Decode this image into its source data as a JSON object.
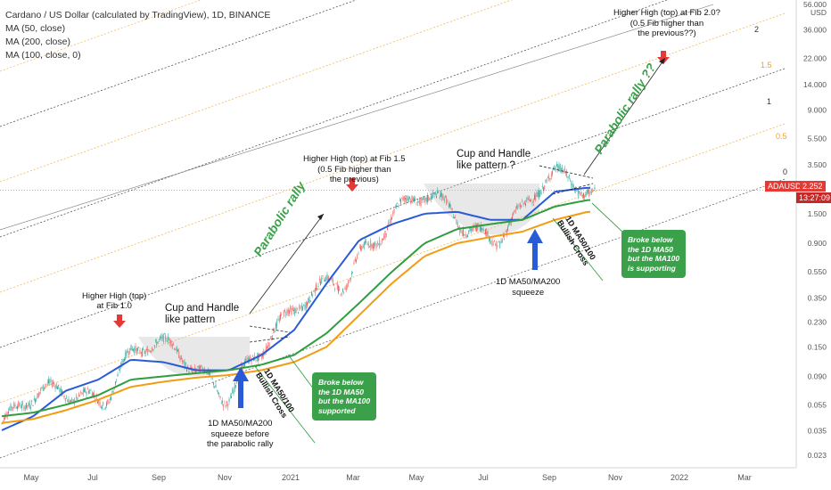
{
  "legend": {
    "title": "Cardano / US Dollar (calculated by TradingView), 1D, BINANCE",
    "ma50": "MA (50, close)",
    "ma200": "MA (200, close)",
    "ma100": "MA (100, close, 0)"
  },
  "price_tag": {
    "symbol": "ADAUSD",
    "price": "2.252",
    "countdown": "13:27:09"
  },
  "colors": {
    "ma50": "#2a5bd7",
    "ma100": "#f39c12",
    "ma200": "#2e9e3e",
    "candle_up": "#26a69a",
    "candle_down": "#ef5350",
    "callout": "#3aa14a",
    "arrow_red": "#e53935",
    "arrow_blue": "#2a5bd7",
    "fib_0": "#333333",
    "fib_05": "#f0b85a",
    "fib_1": "#333333",
    "fib_15": "#f0b85a",
    "fib_2": "#333333"
  },
  "annotations": {
    "hh1": "Higher High (top)\nat Fib 1.0",
    "cup1": "Cup and Handle\nlike pattern",
    "rally1": "Parabolic rally",
    "cross1": "1D MA50/100\nBullish Cross",
    "callout1": "Broke below\nthe 1D MA50\nbut the MA100\nsupported",
    "squeeze1": "1D MA50/MA200\nsqueeze before\nthe parabolic rally",
    "hh2": "Higher High (top) at Fib 1.5\n(0.5 Fib higher than\nthe previous)",
    "cup2": "Cup and Handle\nlike pattern ?",
    "cross2": "1D MA50/100\nBullish Cross",
    "callout2": "Broke below\nthe 1D MA50\nbut the MA100\nis supporting",
    "squeeze2": "1D MA50/MA200\nsqueeze",
    "rally2": "Parabolic rally ??",
    "hh3": "Higher High (top) at Fib 2.0?\n(0.5 Fib higher than\nthe previous??)"
  },
  "chart_data": {
    "type": "line",
    "title": "Cardano / US Dollar (calculated by TradingView), 1D, BINANCE",
    "y_scale": "log",
    "ylim": [
      0.02,
      56
    ],
    "y_ticks": [
      "56.000",
      "USD",
      "36.000",
      "22.000",
      "14.000",
      "9.000",
      "5.500",
      "3.500",
      "2.252",
      "1.500",
      "0.900",
      "0.550",
      "0.350",
      "0.230",
      "0.150",
      "0.090",
      "0.055",
      "0.035",
      "0.023"
    ],
    "x_ticks": [
      "May",
      "Jul",
      "Sep",
      "Nov",
      "2021",
      "Mar",
      "May",
      "Jul",
      "Sep",
      "Nov",
      "2022",
      "Mar"
    ],
    "fib_labels": [
      "0",
      "0.5",
      "1",
      "1.5",
      "2"
    ],
    "current_price": 2.252,
    "series": [
      {
        "name": "MA (50, close)",
        "x": [
          "2020-04",
          "2020-05",
          "2020-06",
          "2020-07",
          "2020-08",
          "2020-09",
          "2020-10",
          "2020-11",
          "2020-12",
          "2021-01",
          "2021-02",
          "2021-03",
          "2021-04",
          "2021-05",
          "2021-06",
          "2021-07",
          "2021-08",
          "2021-09",
          "2021-10"
        ],
        "values": [
          0.035,
          0.045,
          0.07,
          0.085,
          0.12,
          0.115,
          0.1,
          0.1,
          0.13,
          0.2,
          0.45,
          0.95,
          1.25,
          1.5,
          1.55,
          1.35,
          1.35,
          2.2,
          2.35
        ]
      },
      {
        "name": "MA (200, close)",
        "x": [
          "2020-04",
          "2020-05",
          "2020-06",
          "2020-07",
          "2020-08",
          "2020-09",
          "2020-10",
          "2020-11",
          "2020-12",
          "2021-01",
          "2021-02",
          "2021-03",
          "2021-04",
          "2021-05",
          "2021-06",
          "2021-07",
          "2021-08",
          "2021-09",
          "2021-10"
        ],
        "values": [
          0.045,
          0.048,
          0.055,
          0.065,
          0.085,
          0.09,
          0.095,
          0.1,
          0.11,
          0.13,
          0.19,
          0.32,
          0.55,
          0.9,
          1.15,
          1.25,
          1.35,
          1.7,
          1.9
        ]
      },
      {
        "name": "MA (100, close, 0)",
        "x": [
          "2020-04",
          "2020-05",
          "2020-06",
          "2020-07",
          "2020-08",
          "2020-09",
          "2020-10",
          "2020-11",
          "2020-12",
          "2021-01",
          "2021-02",
          "2021-03",
          "2021-04",
          "2021-05",
          "2021-06",
          "2021-07",
          "2021-08",
          "2021-09",
          "2021-10"
        ],
        "values": [
          0.04,
          0.043,
          0.05,
          0.06,
          0.075,
          0.082,
          0.088,
          0.092,
          0.1,
          0.115,
          0.15,
          0.26,
          0.45,
          0.72,
          0.9,
          1.0,
          1.1,
          1.35,
          1.55
        ]
      }
    ]
  }
}
